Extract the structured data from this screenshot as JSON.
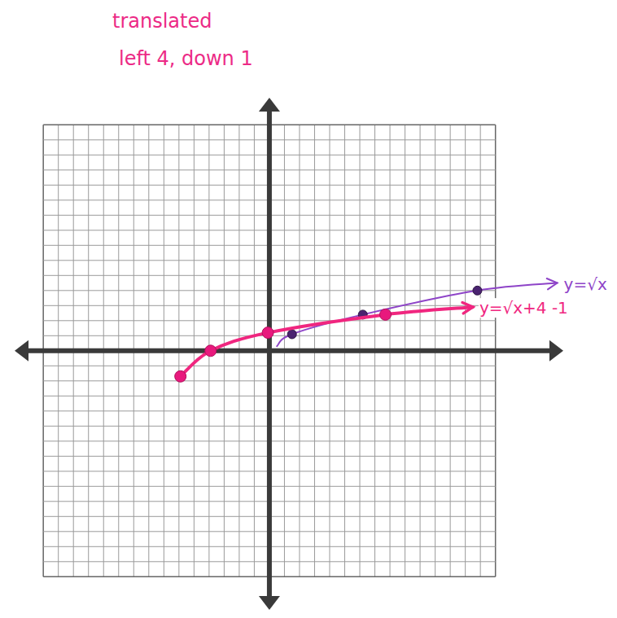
{
  "chart_data": {
    "type": "line",
    "title": "translated",
    "subtitle": "left 4, down 1",
    "xlim": [
      -16.9,
      19.5
    ],
    "ylim": [
      -17.2,
      16.8
    ],
    "xticks": [
      -15,
      -14,
      -13,
      -12,
      -11,
      -10,
      -9,
      -8,
      -7,
      -6,
      -5,
      -4,
      -3,
      -2,
      -1,
      0,
      1,
      2,
      3,
      4,
      5,
      6,
      7,
      8,
      9,
      10,
      11,
      12,
      13,
      14,
      15
    ],
    "yticks": [
      -15,
      -14,
      -13,
      -12,
      -11,
      -10,
      -9,
      -8,
      -7,
      -6,
      -5,
      -4,
      -3,
      -2,
      -1,
      0,
      1,
      2,
      3,
      4,
      5,
      6,
      7,
      8,
      9,
      10,
      11,
      12,
      13,
      14,
      15
    ],
    "grid": true,
    "tick_labels": false,
    "series": [
      {
        "name": "y=√x",
        "type": "line",
        "color": "#8e44c8",
        "marker": "none",
        "line_style": "solid",
        "x": [
          0.5,
          1.5,
          6.2,
          13.8,
          19.1
        ],
        "values": [
          0.3,
          1.1,
          2.4,
          4.0,
          4.5
        ]
      },
      {
        "type": "scatter",
        "color": "#4a2370",
        "marker": "circle",
        "x": [
          1.5,
          6.2,
          13.8
        ],
        "values": [
          1.1,
          2.4,
          4.0
        ]
      },
      {
        "name": "y=√x+4 -1",
        "type": "line",
        "color": "#f0267f",
        "marker": "none",
        "line_style": "solid",
        "x": [
          -5.9,
          -3.9,
          -0.1,
          7.7,
          13.5
        ],
        "values": [
          -1.7,
          0,
          1.2,
          2.4,
          2.9
        ]
      },
      {
        "type": "scatter",
        "color": "#e8197d",
        "marker": "circle",
        "x": [
          -5.9,
          -3.9,
          -0.1,
          7.7
        ],
        "values": [
          -1.7,
          0,
          1.2,
          2.4
        ]
      }
    ]
  }
}
